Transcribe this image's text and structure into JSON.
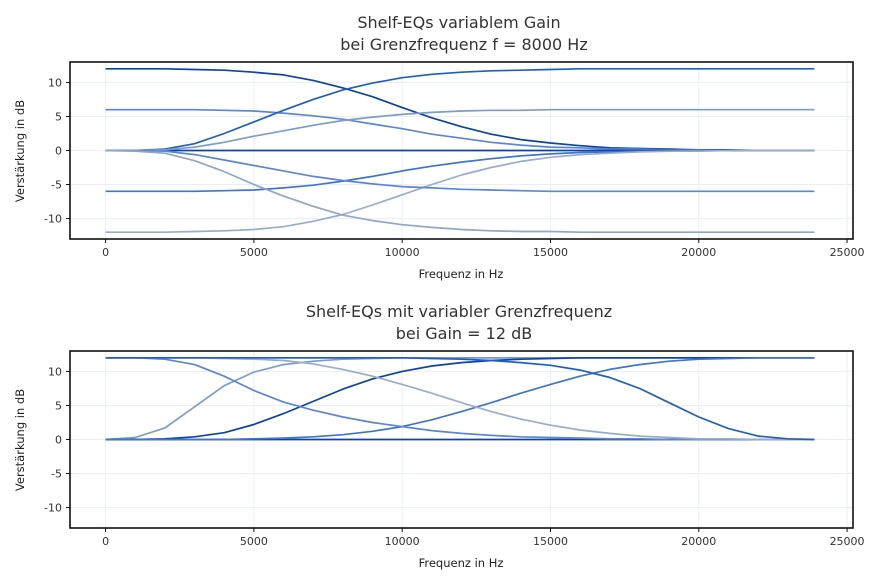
{
  "colors": {
    "grid": "#e9eef2",
    "frame": "#111111",
    "text": "#333333",
    "series_palette": [
      "#0b44a8",
      "#1f5fc2",
      "#3f74d0",
      "#5b86d6",
      "#7d9cc9",
      "#9aaccb"
    ]
  },
  "chart_data": [
    {
      "type": "line",
      "title": [
        "Shelf-EQs variablem Gain",
        "bei Grenzfrequenz f = 8000 Hz"
      ],
      "xlabel": "Frequenz in Hz",
      "ylabel": "Verstärkung in dB",
      "xlim": [
        -1200,
        25200
      ],
      "ylim": [
        -13,
        13
      ],
      "xticks": [
        0,
        5000,
        10000,
        15000,
        20000,
        25000
      ],
      "yticks": [
        -10,
        -5,
        0,
        5,
        10
      ],
      "grid": true,
      "legend": "none",
      "x": [
        0,
        1000,
        2000,
        3000,
        4000,
        5000,
        6000,
        7000,
        8000,
        9000,
        10000,
        11000,
        12000,
        13000,
        14000,
        15000,
        16000,
        17000,
        18000,
        19000,
        20000,
        21000,
        22000,
        23000,
        23900
      ],
      "series": [
        {
          "color": "#0b44a8",
          "values": [
            12.0,
            12.0,
            12.0,
            11.9,
            11.8,
            11.5,
            11.1,
            10.3,
            9.2,
            7.9,
            6.3,
            4.8,
            3.5,
            2.4,
            1.6,
            1.1,
            0.7,
            0.4,
            0.3,
            0.2,
            0.1,
            0.1,
            0.0,
            0.0,
            0.0
          ]
        },
        {
          "color": "#5b86d6",
          "values": [
            6.0,
            6.0,
            6.0,
            6.0,
            5.9,
            5.8,
            5.5,
            5.1,
            4.6,
            3.9,
            3.2,
            2.4,
            1.8,
            1.2,
            0.8,
            0.5,
            0.4,
            0.2,
            0.2,
            0.1,
            0.1,
            0.0,
            0.0,
            0.0,
            0.0
          ]
        },
        {
          "color": "#0b44a8",
          "values": [
            0,
            0,
            0,
            0,
            0,
            0,
            0,
            0,
            0,
            0,
            0,
            0,
            0,
            0,
            0,
            0,
            0,
            0,
            0,
            0,
            0,
            0,
            0,
            0,
            0
          ]
        },
        {
          "color": "#3f74d0",
          "values": [
            -6.0,
            -6.0,
            -6.0,
            -6.0,
            -5.9,
            -5.8,
            -5.5,
            -5.1,
            -4.5,
            -3.8,
            -3.0,
            -2.3,
            -1.7,
            -1.2,
            -0.8,
            -0.5,
            -0.3,
            -0.2,
            -0.1,
            -0.1,
            0.0,
            0.0,
            0.0,
            0.0,
            0.0
          ]
        },
        {
          "color": "#9aaccb",
          "values": [
            -12.0,
            -12.0,
            -12.0,
            -11.9,
            -11.8,
            -11.6,
            -11.2,
            -10.4,
            -9.4,
            -8.0,
            -6.5,
            -5.0,
            -3.6,
            -2.5,
            -1.6,
            -1.0,
            -0.6,
            -0.4,
            -0.2,
            -0.1,
            -0.1,
            0.0,
            0.0,
            0.0,
            0.0
          ]
        },
        {
          "color": "#1f5fc2",
          "values": [
            0.0,
            0.0,
            0.2,
            1.0,
            2.5,
            4.2,
            5.9,
            7.5,
            8.9,
            9.9,
            10.7,
            11.2,
            11.5,
            11.7,
            11.8,
            11.9,
            12.0,
            12.0,
            12.0,
            12.0,
            12.0,
            12.0,
            12.0,
            12.0,
            12.0
          ]
        },
        {
          "color": "#7d9cc9",
          "values": [
            0.0,
            0.0,
            0.1,
            0.5,
            1.2,
            2.1,
            2.9,
            3.7,
            4.4,
            4.9,
            5.3,
            5.6,
            5.8,
            5.9,
            5.9,
            6.0,
            6.0,
            6.0,
            6.0,
            6.0,
            6.0,
            6.0,
            6.0,
            6.0,
            6.0
          ]
        },
        {
          "color": "#5b86d6",
          "values": [
            0.0,
            0.0,
            -0.1,
            -0.6,
            -1.4,
            -2.2,
            -3.0,
            -3.8,
            -4.4,
            -4.9,
            -5.3,
            -5.5,
            -5.7,
            -5.8,
            -5.9,
            -6.0,
            -6.0,
            -6.0,
            -6.0,
            -6.0,
            -6.0,
            -6.0,
            -6.0,
            -6.0,
            -6.0
          ]
        },
        {
          "color": "#8fa5c9",
          "values": [
            0.0,
            -0.1,
            -0.4,
            -1.5,
            -3.1,
            -5.0,
            -6.7,
            -8.2,
            -9.5,
            -10.3,
            -10.9,
            -11.3,
            -11.6,
            -11.8,
            -11.9,
            -11.9,
            -12.0,
            -12.0,
            -12.0,
            -12.0,
            -12.0,
            -12.0,
            -12.0,
            -12.0,
            -12.0
          ]
        }
      ]
    },
    {
      "type": "line",
      "title": [
        "Shelf-EQs mit variabler Grenzfrequenz",
        "bei Gain = 12 dB"
      ],
      "xlabel": "Frequenz in Hz",
      "ylabel": "Verstärkung in dB",
      "xlim": [
        -1200,
        25200
      ],
      "ylim": [
        -13,
        13
      ],
      "xticks": [
        0,
        5000,
        10000,
        15000,
        20000,
        25000
      ],
      "yticks": [
        -10,
        -5,
        0,
        5,
        10
      ],
      "grid": true,
      "legend": "none",
      "x": [
        0,
        1000,
        2000,
        3000,
        4000,
        5000,
        6000,
        7000,
        8000,
        9000,
        10000,
        11000,
        12000,
        13000,
        14000,
        15000,
        16000,
        17000,
        18000,
        19000,
        20000,
        21000,
        22000,
        23000,
        23900
      ],
      "series": [
        {
          "color": "#0b44a8",
          "values": [
            0,
            0,
            0,
            0,
            0,
            0,
            0,
            0,
            0,
            0,
            0,
            0,
            0,
            0,
            0,
            0,
            0,
            0,
            0,
            0,
            0,
            0,
            0,
            0,
            0
          ]
        },
        {
          "color": "#0b44a8",
          "values": [
            12,
            12,
            12,
            12,
            12,
            12,
            12,
            12,
            12,
            12,
            12,
            12,
            12,
            12,
            12,
            12,
            12,
            12,
            12,
            12,
            12,
            12,
            12,
            12,
            12
          ]
        },
        {
          "color": "#7d9cc9",
          "values": [
            0.0,
            0.3,
            1.7,
            4.8,
            7.9,
            9.9,
            11.0,
            11.5,
            11.8,
            11.9,
            12.0,
            12.0,
            12.0,
            12.0,
            12.0,
            12.0,
            12.0,
            12.0,
            12.0,
            12.0,
            12.0,
            12.0,
            12.0,
            12.0,
            12.0
          ]
        },
        {
          "color": "#0b44a8",
          "values": [
            0.0,
            0.0,
            0.1,
            0.4,
            1.0,
            2.2,
            3.8,
            5.6,
            7.4,
            8.9,
            10.0,
            10.8,
            11.3,
            11.6,
            11.8,
            11.9,
            12.0,
            12.0,
            12.0,
            12.0,
            12.0,
            12.0,
            12.0,
            12.0,
            12.0
          ]
        },
        {
          "color": "#3f74d0",
          "values": [
            0.0,
            0.0,
            0.0,
            0.0,
            0.0,
            0.1,
            0.2,
            0.4,
            0.7,
            1.2,
            1.9,
            2.9,
            4.1,
            5.4,
            6.8,
            8.1,
            9.3,
            10.3,
            11.0,
            11.5,
            11.8,
            11.9,
            12.0,
            12.0,
            12.0
          ]
        },
        {
          "color": "#5b86d6",
          "values": [
            12.0,
            12.0,
            11.8,
            11.0,
            9.3,
            7.2,
            5.5,
            4.3,
            3.3,
            2.5,
            1.9,
            1.3,
            0.9,
            0.6,
            0.4,
            0.3,
            0.2,
            0.1,
            0.1,
            0.0,
            0.0,
            0.0,
            0.0,
            0.0,
            0.0
          ]
        },
        {
          "color": "#9aaccb",
          "values": [
            12.0,
            12.0,
            12.0,
            12.0,
            11.9,
            11.8,
            11.6,
            11.1,
            10.3,
            9.3,
            8.1,
            6.8,
            5.4,
            4.1,
            3.0,
            2.1,
            1.4,
            0.9,
            0.5,
            0.3,
            0.1,
            0.1,
            0.0,
            0.0,
            0.0
          ]
        },
        {
          "color": "#1f5fc2",
          "values": [
            12.0,
            12.0,
            12.0,
            12.0,
            12.0,
            12.0,
            12.0,
            12.0,
            12.0,
            12.0,
            12.0,
            11.9,
            11.8,
            11.6,
            11.3,
            10.9,
            10.2,
            9.1,
            7.5,
            5.4,
            3.3,
            1.6,
            0.5,
            0.1,
            0.0
          ]
        }
      ]
    }
  ]
}
